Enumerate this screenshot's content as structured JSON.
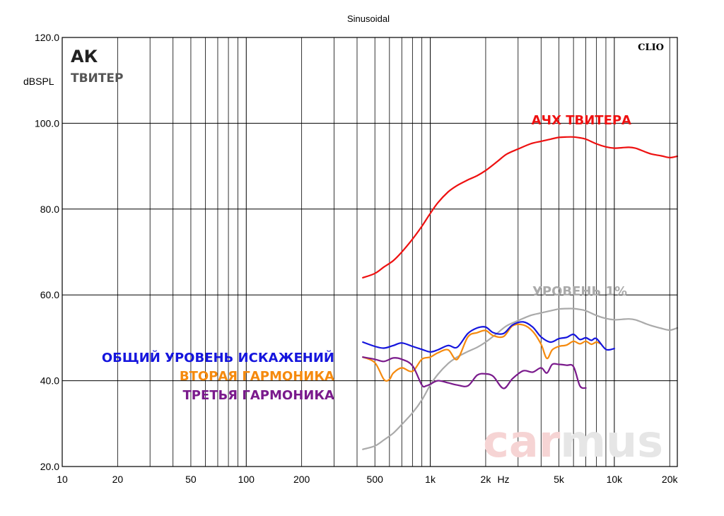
{
  "chart_data": {
    "type": "line",
    "title": "Sinusoidal",
    "ylabel": "dBSPL",
    "xlabel": "Hz",
    "xscale": "log",
    "xlim": [
      10,
      22000
    ],
    "ylim": [
      20,
      120
    ],
    "grid": true,
    "brand_label": "CLIO",
    "badge": {
      "main": "АК",
      "sub": "ТВИТЕР"
    },
    "watermark": "carmus",
    "y_ticks": [
      {
        "value": 20,
        "label": "20.0"
      },
      {
        "value": 40,
        "label": "40.0"
      },
      {
        "value": 60,
        "label": "60.0"
      },
      {
        "value": 80,
        "label": "80.0"
      },
      {
        "value": 100,
        "label": "100.0"
      },
      {
        "value": 120,
        "label": "120.0"
      }
    ],
    "x_ticks": [
      {
        "value": 10,
        "label": "10"
      },
      {
        "value": 20,
        "label": "20"
      },
      {
        "value": 50,
        "label": "50"
      },
      {
        "value": 100,
        "label": "100"
      },
      {
        "value": 200,
        "label": "200"
      },
      {
        "value": 500,
        "label": "500"
      },
      {
        "value": 1000,
        "label": "1k"
      },
      {
        "value": 2000,
        "label": "2k"
      },
      {
        "value": 5000,
        "label": "5k"
      },
      {
        "value": 10000,
        "label": "10k"
      },
      {
        "value": 20000,
        "label": "20k"
      }
    ],
    "series": [
      {
        "name": "АЧХ ТВИТЕРА",
        "color": "#ee1111",
        "x": [
          430,
          500,
          560,
          630,
          700,
          800,
          900,
          1000,
          1100,
          1250,
          1400,
          1600,
          1800,
          2000,
          2300,
          2600,
          3000,
          3500,
          4000,
          4500,
          5000,
          5500,
          6000,
          6500,
          7000,
          8000,
          9000,
          10000,
          11000,
          12000,
          13000,
          14000,
          15000,
          16000,
          18000,
          20000,
          22000
        ],
        "y": [
          64,
          65,
          66.5,
          68,
          70,
          73,
          76,
          79,
          81.5,
          84,
          85.5,
          86.8,
          87.8,
          89,
          91,
          92.8,
          94,
          95.2,
          95.8,
          96.3,
          96.7,
          96.8,
          96.8,
          96.6,
          96.3,
          95.2,
          94.5,
          94.2,
          94.3,
          94.4,
          94.2,
          93.7,
          93.2,
          92.8,
          92.4,
          92,
          92.3
        ]
      },
      {
        "name": "УРОВЕНЬ 1%",
        "color": "#aaaaaa",
        "x": [
          430,
          500,
          560,
          630,
          700,
          800,
          900,
          1000,
          1100,
          1250,
          1400,
          1600,
          1800,
          2000,
          2300,
          2600,
          3000,
          3500,
          4000,
          4500,
          5000,
          5500,
          6000,
          6500,
          7000,
          8000,
          9000,
          10000,
          11000,
          12000,
          13000,
          14000,
          15000,
          16000,
          18000,
          20000,
          22000
        ],
        "y": [
          24,
          24.8,
          26.2,
          27.8,
          29.8,
          32.5,
          35.5,
          39,
          41.5,
          44,
          45.5,
          46.8,
          47.8,
          49,
          51,
          52.8,
          54,
          55.2,
          55.8,
          56.3,
          56.7,
          56.8,
          56.8,
          56.6,
          56.3,
          55.2,
          54.5,
          54.2,
          54.3,
          54.4,
          54.2,
          53.7,
          53.2,
          52.8,
          52.2,
          51.8,
          52.3
        ]
      },
      {
        "name": "ОБЩИЙ УРОВЕНЬ ИСКАЖЕНИЙ",
        "color": "#1515dd",
        "x": [
          430,
          500,
          560,
          630,
          700,
          800,
          900,
          1000,
          1100,
          1250,
          1400,
          1600,
          1800,
          2000,
          2200,
          2500,
          2800,
          3200,
          3600,
          4000,
          4500,
          5000,
          5500,
          6000,
          6500,
          7000,
          7500,
          8000,
          9000,
          10000
        ],
        "y": [
          49,
          48,
          47.6,
          48.2,
          48.8,
          48,
          47.3,
          46.7,
          47.2,
          48.2,
          47.8,
          51,
          52.3,
          52.5,
          51.2,
          51,
          53,
          53.7,
          52.5,
          50.2,
          49,
          49.8,
          50.1,
          50.8,
          49.6,
          50,
          49.4,
          49.8,
          47.3,
          47.5
        ]
      },
      {
        "name": "ВТОРАЯ ГАРМОНИКА",
        "color": "#f58a0e",
        "x": [
          430,
          500,
          560,
          600,
          630,
          700,
          800,
          900,
          1000,
          1100,
          1250,
          1400,
          1600,
          1800,
          2000,
          2200,
          2500,
          2800,
          3200,
          3600,
          4000,
          4300,
          4600,
          5000,
          5500,
          6000,
          6500,
          7000,
          7500,
          8000,
          8500
        ],
        "y": [
          45.5,
          44.2,
          40.3,
          40.3,
          41.8,
          43,
          42.2,
          45,
          45.5,
          46.5,
          47.2,
          45,
          50.2,
          51.2,
          51.7,
          50.5,
          50.3,
          52.8,
          53,
          51.5,
          48.5,
          45.2,
          47.2,
          48,
          48.3,
          49.2,
          48.6,
          49.2,
          48.5,
          49,
          48.5
        ]
      },
      {
        "name": "ТРЕТЬЯ ГАРМОНИКА",
        "color": "#7a1a8c",
        "x": [
          430,
          500,
          560,
          630,
          700,
          800,
          900,
          950,
          1000,
          1100,
          1250,
          1400,
          1600,
          1800,
          2000,
          2200,
          2500,
          2800,
          3200,
          3600,
          4000,
          4300,
          4600,
          5000,
          5500,
          6000,
          6500,
          7000
        ],
        "y": [
          45.5,
          45,
          44.5,
          45.3,
          45,
          43.5,
          39,
          38.8,
          39.2,
          40,
          39.5,
          39,
          38.8,
          41.3,
          41.6,
          41,
          38.2,
          40.5,
          42.3,
          42,
          43,
          41.8,
          43.8,
          43.8,
          43.6,
          43.3,
          38.8,
          38.3
        ]
      }
    ]
  }
}
